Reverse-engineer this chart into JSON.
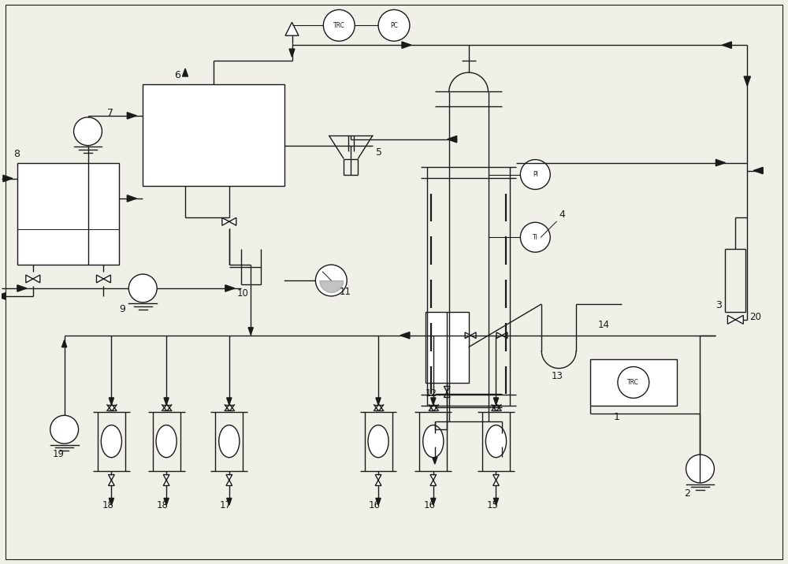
{
  "bg_color": "#f0efe8",
  "line_color": "#1a1a1a",
  "figsize": [
    10.0,
    7.16
  ],
  "dpi": 100,
  "xlim": [
    0,
    100
  ],
  "ylim": [
    0,
    71.6
  ]
}
